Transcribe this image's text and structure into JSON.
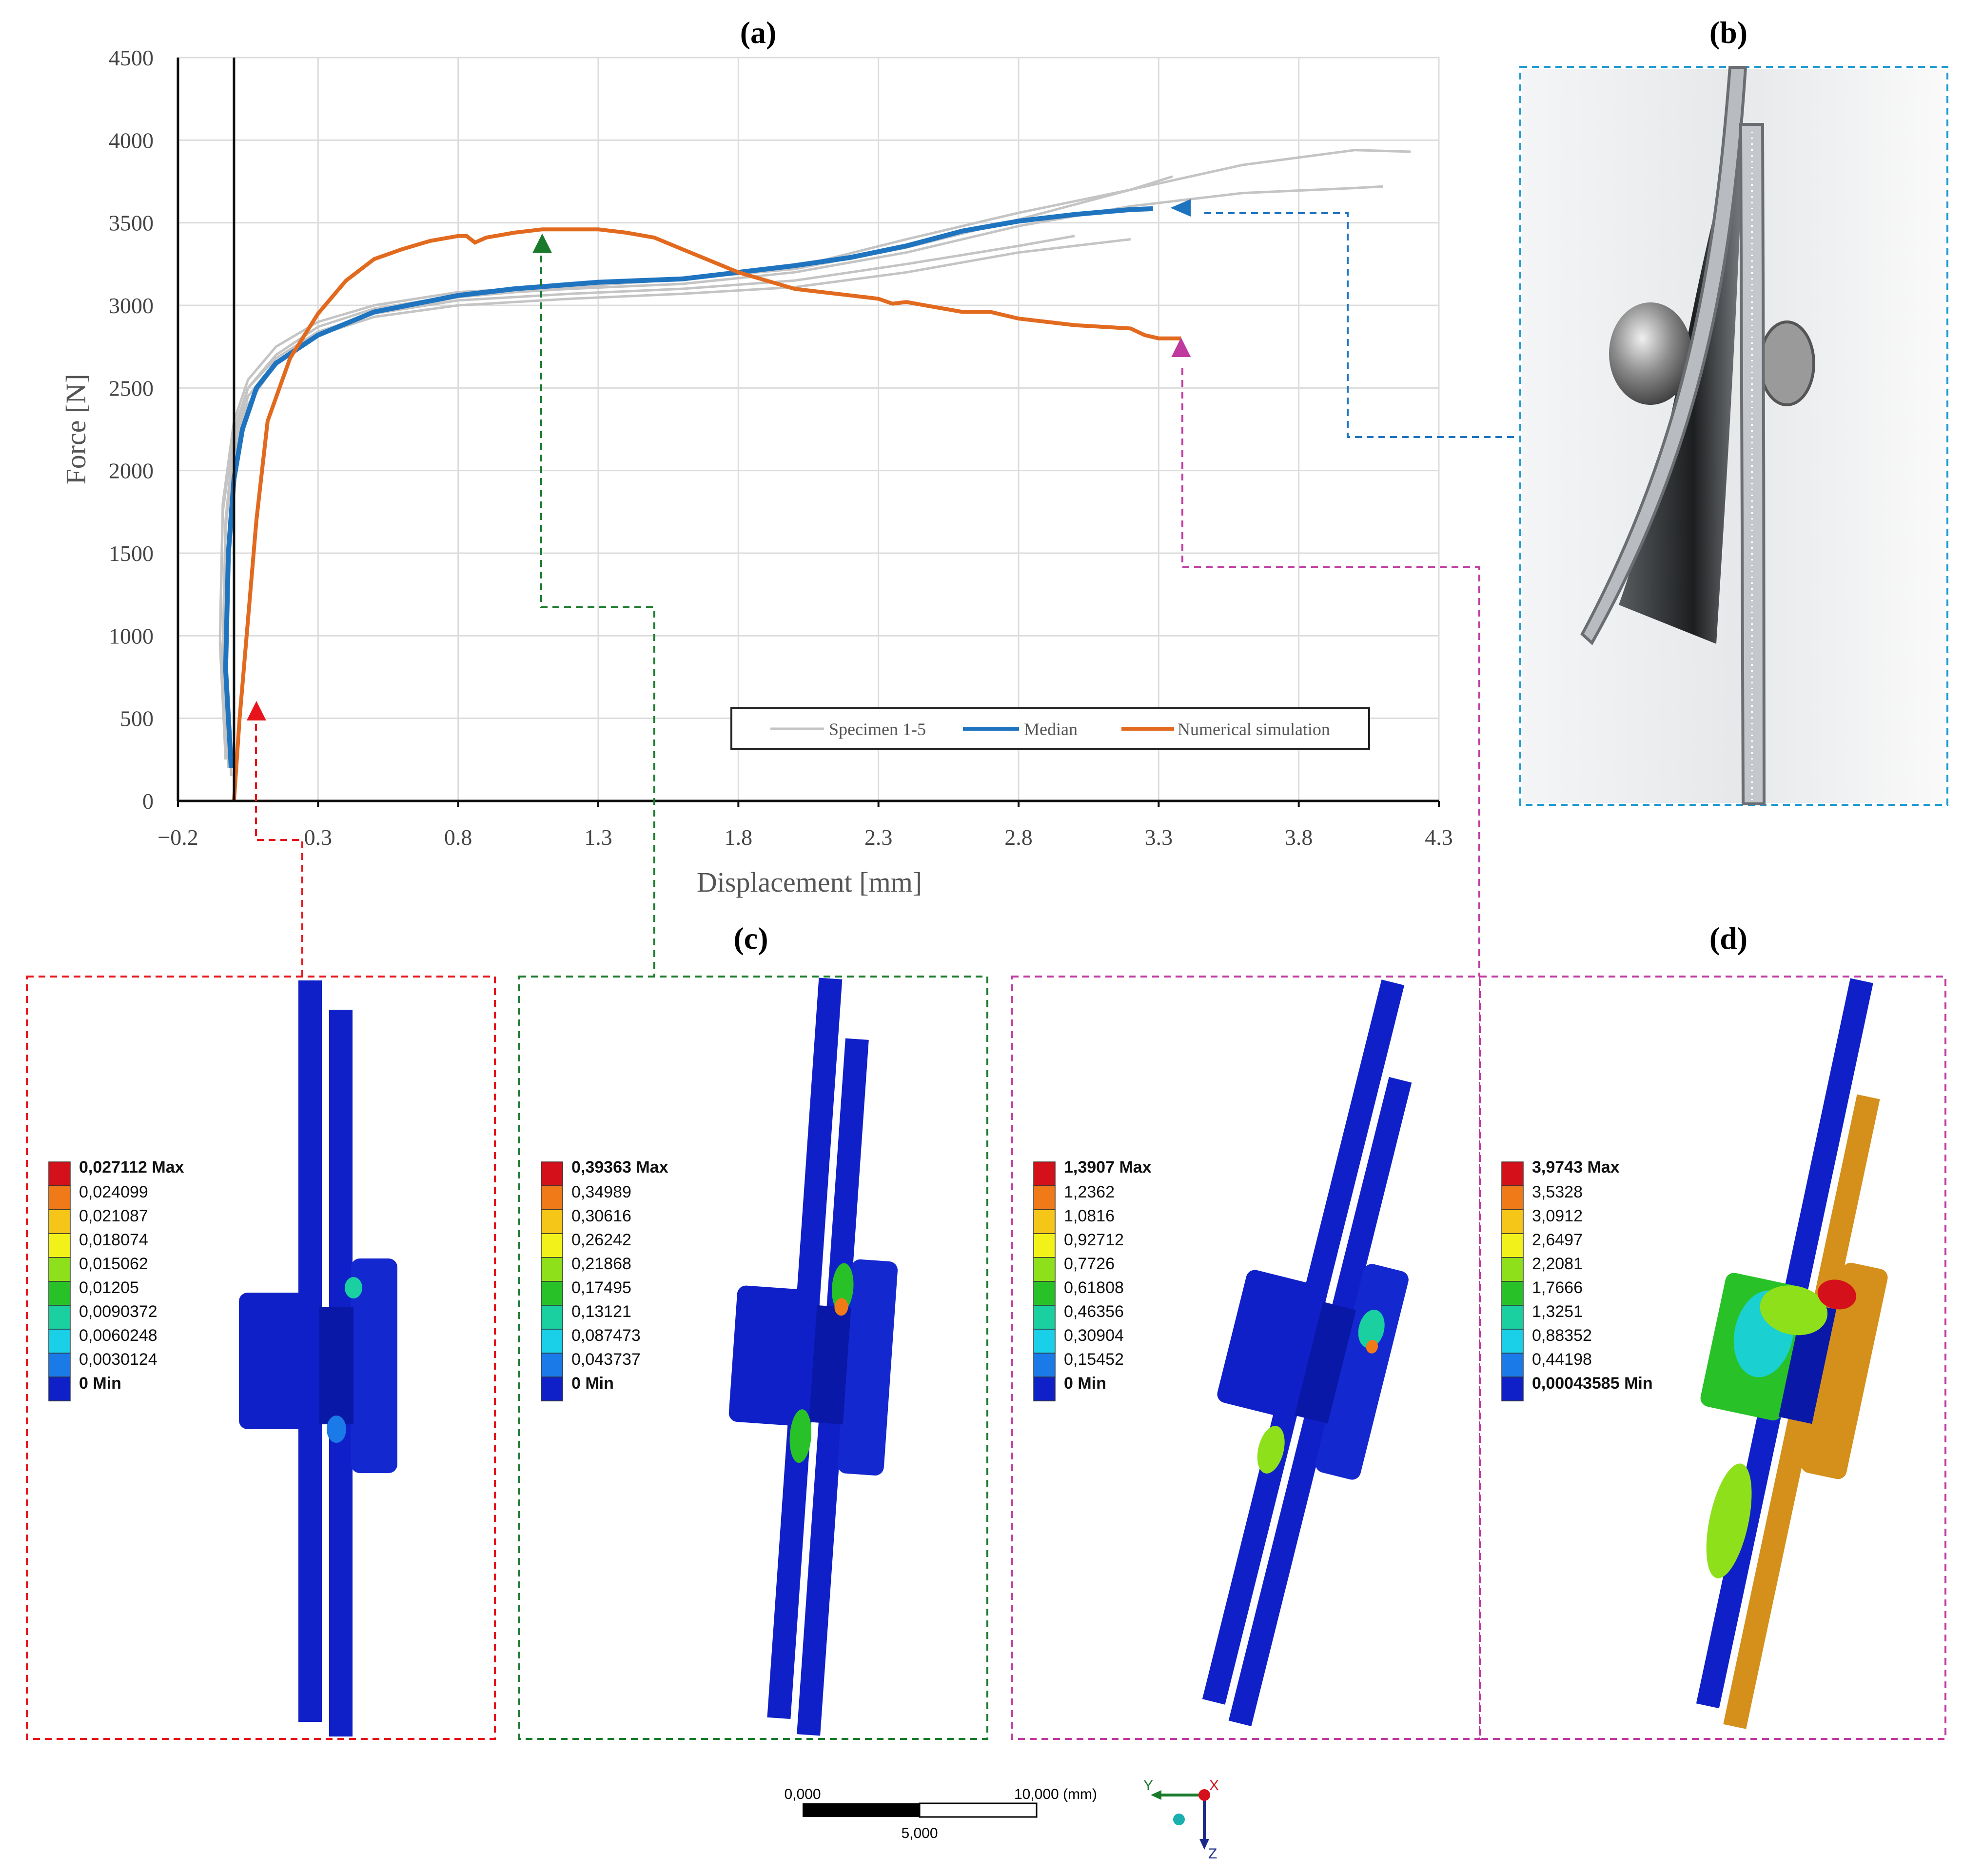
{
  "panel_labels": {
    "a": "(a)",
    "b": "(b)",
    "c": "(c)",
    "d": "(d)"
  },
  "chart_data": {
    "type": "line",
    "xlabel": "Displacement [mm]",
    "ylabel": "Force [N]",
    "xlim": [
      -0.2,
      4.3
    ],
    "ylim": [
      0,
      4500
    ],
    "x_ticks": [
      "−0.2",
      "0.3",
      "0.8",
      "1.3",
      "1.8",
      "2.3",
      "2.8",
      "3.3",
      "3.8",
      "4.3"
    ],
    "y_ticks": [
      "0",
      "500",
      "1000",
      "1500",
      "2000",
      "2500",
      "3000",
      "3500",
      "4000",
      "4500"
    ],
    "grid": true,
    "legend_position": "bottom-right",
    "series": [
      {
        "name": "Specimen 1-5",
        "color": "#c4c4c4",
        "curves": [
          {
            "x": [
              -0.03,
              -0.05,
              -0.04,
              0.0,
              0.05,
              0.15,
              0.3,
              0.5,
              0.8,
              1.2,
              1.6,
              2.0,
              2.4,
              2.8,
              3.2,
              3.6,
              4.0,
              4.2
            ],
            "y": [
              300,
              1000,
              1800,
              2300,
              2550,
              2750,
              2900,
              3000,
              3080,
              3120,
              3160,
              3220,
              3350,
              3520,
              3700,
              3850,
              3940,
              3930
            ]
          },
          {
            "x": [
              -0.02,
              -0.04,
              -0.03,
              0.0,
              0.05,
              0.15,
              0.3,
              0.5,
              0.8,
              1.2,
              1.6,
              2.0,
              2.4,
              2.8,
              3.2,
              3.6,
              4.0,
              4.1
            ],
            "y": [
              200,
              900,
              1700,
              2200,
              2500,
              2700,
              2870,
              2980,
              3060,
              3100,
              3130,
              3200,
              3320,
              3480,
              3600,
              3680,
              3710,
              3720
            ]
          },
          {
            "x": [
              -0.03,
              -0.05,
              -0.04,
              0.0,
              0.05,
              0.15,
              0.3,
              0.5,
              0.8,
              1.2,
              1.6,
              2.0,
              2.4,
              2.8,
              3.0
            ],
            "y": [
              250,
              950,
              1750,
              2250,
              2500,
              2680,
              2840,
              2950,
              3030,
              3070,
              3100,
              3150,
              3250,
              3360,
              3420
            ]
          },
          {
            "x": [
              -0.02,
              -0.04,
              -0.03,
              0.0,
              0.05,
              0.15,
              0.3,
              0.5,
              0.8,
              1.2,
              1.6,
              2.0,
              2.4,
              2.8,
              3.2
            ],
            "y": [
              200,
              850,
              1650,
              2150,
              2450,
              2650,
              2820,
              2930,
              3000,
              3040,
              3070,
              3110,
              3200,
              3320,
              3400
            ]
          },
          {
            "x": [
              -0.01,
              -0.03,
              -0.02,
              0.0,
              0.05,
              0.15,
              0.3,
              0.5,
              0.8,
              1.2,
              1.6,
              2.0,
              2.4,
              2.8,
              3.2,
              3.35
            ],
            "y": [
              150,
              800,
              1600,
              2100,
              2400,
              2650,
              2830,
              2950,
              3050,
              3110,
              3160,
              3230,
              3400,
              3560,
              3700,
              3780
            ]
          }
        ]
      },
      {
        "name": "Median",
        "color": "#1f74c0",
        "x": [
          -0.01,
          -0.03,
          -0.02,
          0.0,
          0.03,
          0.08,
          0.15,
          0.3,
          0.5,
          0.8,
          1.0,
          1.3,
          1.6,
          1.8,
          2.0,
          2.2,
          2.4,
          2.6,
          2.8,
          3.0,
          3.2,
          3.28
        ],
        "y": [
          200,
          800,
          1500,
          1950,
          2250,
          2500,
          2650,
          2820,
          2960,
          3060,
          3100,
          3140,
          3160,
          3200,
          3240,
          3290,
          3360,
          3450,
          3510,
          3550,
          3580,
          3585
        ]
      },
      {
        "name": "Numerical simulation",
        "color": "#e26a1f",
        "x": [
          0.0,
          0.02,
          0.05,
          0.08,
          0.12,
          0.2,
          0.3,
          0.4,
          0.5,
          0.6,
          0.7,
          0.8,
          0.83,
          0.86,
          0.9,
          1.0,
          1.1,
          1.2,
          1.3,
          1.4,
          1.5,
          1.6,
          1.7,
          1.8,
          1.9,
          2.0,
          2.2,
          2.3,
          2.35,
          2.4,
          2.5,
          2.6,
          2.7,
          2.8,
          3.0,
          3.2,
          3.25,
          3.3,
          3.38
        ],
        "y": [
          0,
          500,
          1100,
          1700,
          2300,
          2680,
          2950,
          3150,
          3280,
          3340,
          3390,
          3420,
          3420,
          3380,
          3410,
          3440,
          3460,
          3460,
          3460,
          3440,
          3410,
          3340,
          3270,
          3200,
          3150,
          3100,
          3060,
          3040,
          3010,
          3020,
          2990,
          2960,
          2960,
          2920,
          2880,
          2860,
          2820,
          2800,
          2800
        ]
      }
    ],
    "markers": [
      {
        "x": 0.08,
        "y": 540,
        "color": "#e8141b"
      },
      {
        "x": 1.1,
        "y": 3370,
        "color": "#1a7a2c"
      },
      {
        "x": 3.38,
        "y": 2740,
        "color": "#c0399f"
      },
      {
        "x": 3.38,
        "y": 3590,
        "color": "#1f74c0"
      }
    ]
  },
  "fea_panels": [
    {
      "border_color": "#e8141b",
      "legend": [
        "0,027112 Max",
        "0,024099",
        "0,021087",
        "0,018074",
        "0,015062",
        "0,01205",
        "0,0090372",
        "0,0060248",
        "0,0030124",
        "0 Min"
      ]
    },
    {
      "border_color": "#1a7a2c",
      "legend": [
        "0,39363 Max",
        "0,34989",
        "0,30616",
        "0,26242",
        "0,21868",
        "0,17495",
        "0,13121",
        "0,087473",
        "0,043737",
        "0 Min"
      ]
    },
    {
      "border_color": "#c0399f",
      "legend": [
        "1,3907 Max",
        "1,2362",
        "1,0816",
        "0,92712",
        "0,7726",
        "0,61808",
        "0,46356",
        "0,30904",
        "0,15452",
        "0 Min"
      ]
    },
    {
      "border_color": "#c0399f",
      "legend": [
        "3,9743 Max",
        "3,5328",
        "3,0912",
        "2,6497",
        "2,2081",
        "1,7666",
        "1,3251",
        "0,88352",
        "0,44198",
        "0,00043585 Min"
      ]
    }
  ],
  "legend_colors": [
    "#d4111a",
    "#f07a18",
    "#f5c518",
    "#f2f21a",
    "#8ee01a",
    "#28c228",
    "#1ad0a0",
    "#1ad0e8",
    "#1a7ae8",
    "#1020c8"
  ],
  "scale_bar": {
    "left": "0,000",
    "right": "10,000 (mm)",
    "middle": "5,000"
  },
  "triad": {
    "y_label": "Y",
    "z_label": "Z",
    "x_label": "X"
  }
}
